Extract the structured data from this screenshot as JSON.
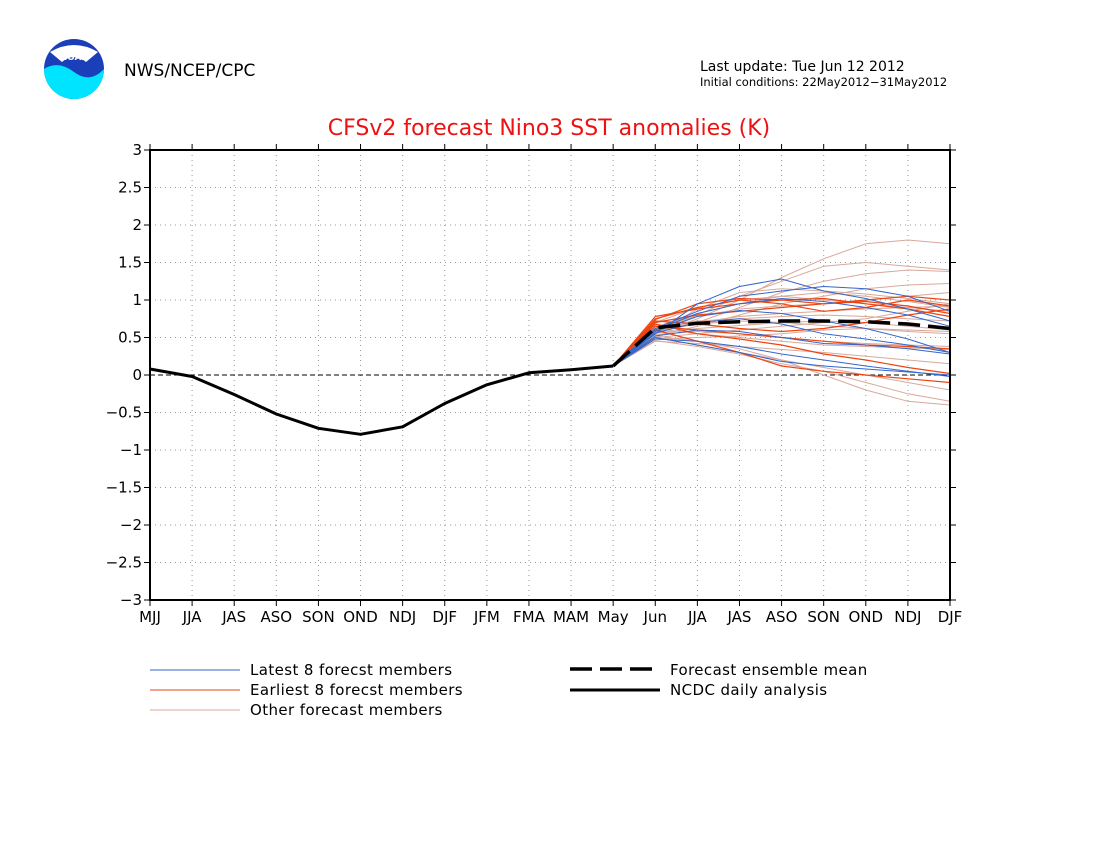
{
  "header": {
    "org": "NWS/NCEP/CPC",
    "logo_text": "NOAA",
    "last_update": "Last update: Tue Jun 12 2012",
    "initial_conditions": "Initial conditions: 22May2012−31May2012"
  },
  "colors": {
    "title": "#ee1111",
    "latest_members": "#3366cc",
    "earliest_members": "#ee4411",
    "other_members": "#d8a89a",
    "ensemble_mean": "#000000",
    "analysis": "#000000"
  },
  "chart_data": {
    "type": "line",
    "title": "CFSv2 forecast Nino3 SST anomalies (K)",
    "xlabel": "",
    "ylabel": "",
    "categories": [
      "MJJ",
      "JJA",
      "JAS",
      "ASO",
      "SON",
      "OND",
      "NDJ",
      "DJF",
      "JFM",
      "FMA",
      "MAM",
      "May",
      "Jun",
      "JJA",
      "JAS",
      "ASO",
      "SON",
      "OND",
      "NDJ",
      "DJF"
    ],
    "ylim": [
      -3,
      3
    ],
    "yticks": [
      -3,
      -2.5,
      -2,
      -1.5,
      -1,
      -0.5,
      0,
      0.5,
      1,
      1.5,
      2,
      2.5,
      3
    ],
    "ytick_labels": [
      "−3",
      "−2.5",
      "−2",
      "−1.5",
      "−1",
      "−0.5",
      "0",
      "0.5",
      "1",
      "1.5",
      "2",
      "2.5",
      "3"
    ],
    "grid": true,
    "legend_position": "bottom",
    "legend": {
      "latest": "Latest 8 forecst members",
      "earliest": "Earliest 8 forecst members",
      "other": "Other forecast members",
      "mean": "Forecast ensemble mean",
      "analysis": "NCDC daily analysis"
    },
    "analysis": {
      "name": "NCDC daily analysis",
      "x_start": 0,
      "values": [
        0.08,
        -0.02,
        -0.26,
        -0.52,
        -0.71,
        -0.79,
        -0.69,
        -0.38,
        -0.13,
        0.03,
        0.07,
        0.12
      ]
    },
    "ensemble_mean": {
      "name": "Forecast ensemble mean",
      "x_start": 11,
      "values": [
        0.12,
        0.63,
        0.69,
        0.71,
        0.72,
        0.72,
        0.71,
        0.68,
        0.62
      ]
    },
    "latest_members": {
      "x_start": 11,
      "series": [
        [
          0.12,
          0.55,
          0.95,
          1.18,
          1.28,
          1.12,
          1.02,
          0.88,
          0.72
        ],
        [
          0.12,
          0.62,
          0.85,
          1.05,
          1.12,
          1.18,
          1.15,
          1.05,
          0.85
        ],
        [
          0.12,
          0.58,
          0.78,
          0.86,
          0.82,
          0.72,
          0.62,
          0.48,
          0.3
        ],
        [
          0.12,
          0.52,
          0.6,
          0.58,
          0.5,
          0.42,
          0.4,
          0.35,
          0.28
        ],
        [
          0.12,
          0.48,
          0.45,
          0.38,
          0.28,
          0.2,
          0.12,
          0.05,
          -0.02
        ],
        [
          0.12,
          0.56,
          0.7,
          0.75,
          0.68,
          0.55,
          0.48,
          0.4,
          0.3
        ],
        [
          0.12,
          0.5,
          0.4,
          0.3,
          0.18,
          0.12,
          0.08,
          0.04,
          0.0
        ],
        [
          0.12,
          0.6,
          0.82,
          0.95,
          1.02,
          0.98,
          0.9,
          0.8,
          0.65
        ]
      ]
    },
    "earliest_members": {
      "x_start": 11,
      "series": [
        [
          0.12,
          0.75,
          0.9,
          1.0,
          0.95,
          0.85,
          0.9,
          1.0,
          0.92
        ],
        [
          0.12,
          0.7,
          0.8,
          0.85,
          0.9,
          0.95,
          0.98,
          0.92,
          0.82
        ],
        [
          0.12,
          0.65,
          0.6,
          0.55,
          0.5,
          0.45,
          0.4,
          0.38,
          0.35
        ],
        [
          0.12,
          0.72,
          0.68,
          0.62,
          0.58,
          0.62,
          0.7,
          0.8,
          0.88
        ],
        [
          0.12,
          0.6,
          0.45,
          0.3,
          0.12,
          0.05,
          0.0,
          -0.05,
          -0.1
        ],
        [
          0.12,
          0.78,
          0.88,
          0.95,
          1.0,
          1.02,
          0.95,
          0.88,
          0.78
        ],
        [
          0.12,
          0.68,
          0.55,
          0.48,
          0.4,
          0.28,
          0.2,
          0.1,
          0.02
        ],
        [
          0.12,
          0.74,
          0.95,
          1.02,
          1.0,
          0.95,
          1.0,
          1.05,
          1.0
        ]
      ]
    },
    "other_members": {
      "x_start": 11,
      "series": [
        [
          0.12,
          0.55,
          0.75,
          1.0,
          1.3,
          1.55,
          1.75,
          1.8,
          1.75
        ],
        [
          0.12,
          0.6,
          0.8,
          1.05,
          1.25,
          1.45,
          1.5,
          1.45,
          1.4
        ],
        [
          0.12,
          0.58,
          0.7,
          0.9,
          1.1,
          1.25,
          1.35,
          1.4,
          1.38
        ],
        [
          0.12,
          0.52,
          0.65,
          0.8,
          0.95,
          1.05,
          1.15,
          1.2,
          1.22
        ],
        [
          0.12,
          0.62,
          0.78,
          0.88,
          0.92,
          0.95,
          1.0,
          1.05,
          1.1
        ],
        [
          0.12,
          0.5,
          0.55,
          0.6,
          0.65,
          0.7,
          0.75,
          0.85,
          0.95
        ],
        [
          0.12,
          0.66,
          0.72,
          0.75,
          0.78,
          0.8,
          0.78,
          0.75,
          0.72
        ],
        [
          0.12,
          0.56,
          0.62,
          0.66,
          0.7,
          0.72,
          0.7,
          0.65,
          0.6
        ],
        [
          0.12,
          0.48,
          0.5,
          0.52,
          0.55,
          0.6,
          0.62,
          0.58,
          0.55
        ],
        [
          0.12,
          0.54,
          0.58,
          0.55,
          0.5,
          0.45,
          0.42,
          0.4,
          0.38
        ],
        [
          0.12,
          0.45,
          0.42,
          0.38,
          0.34,
          0.3,
          0.25,
          0.2,
          0.15
        ],
        [
          0.12,
          0.5,
          0.4,
          0.3,
          0.2,
          0.1,
          0.0,
          -0.1,
          -0.2
        ],
        [
          0.12,
          0.46,
          0.38,
          0.28,
          0.15,
          0.05,
          -0.1,
          -0.25,
          -0.35
        ],
        [
          0.12,
          0.52,
          0.45,
          0.35,
          0.2,
          0.0,
          -0.2,
          -0.35,
          -0.4
        ],
        [
          0.12,
          0.64,
          0.82,
          0.95,
          1.05,
          1.1,
          1.05,
          0.98,
          0.9
        ],
        [
          0.12,
          0.58,
          0.68,
          0.72,
          0.7,
          0.66,
          0.62,
          0.6,
          0.58
        ],
        [
          0.12,
          0.7,
          0.9,
          1.0,
          1.05,
          1.0,
          0.95,
          0.9,
          0.85
        ],
        [
          0.12,
          0.6,
          0.7,
          0.78,
          0.82,
          0.85,
          0.88,
          0.9,
          0.92
        ],
        [
          0.12,
          0.62,
          0.55,
          0.5,
          0.45,
          0.4,
          0.38,
          0.36,
          0.34
        ],
        [
          0.12,
          0.55,
          0.88,
          1.1,
          1.15,
          1.12,
          1.08,
          1.02,
          0.95
        ]
      ]
    }
  }
}
